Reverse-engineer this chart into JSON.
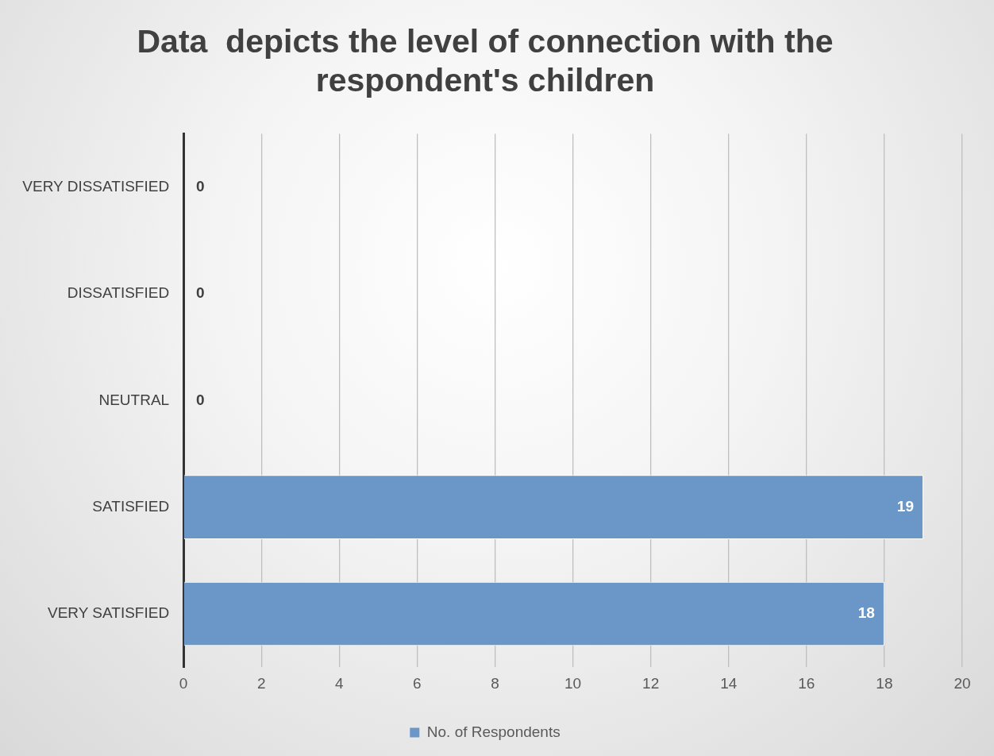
{
  "chart_data": {
    "type": "bar",
    "orientation": "horizontal",
    "title": "Data  depicts the level of connection with the respondent's children",
    "categories": [
      "VERY DISSATISFIED",
      "DISSATISFIED",
      "NEUTRAL",
      "SATISFIED",
      "VERY SATISFIED"
    ],
    "series": [
      {
        "name": "No. of Respondents",
        "color": "#6a96c8",
        "values": [
          0,
          0,
          0,
          19,
          18
        ]
      }
    ],
    "xlim": [
      0,
      20
    ],
    "xticks": [
      0,
      2,
      4,
      6,
      8,
      10,
      12,
      14,
      16,
      18,
      20
    ],
    "grid": "x",
    "legend": "bottom",
    "data_labels": true
  }
}
